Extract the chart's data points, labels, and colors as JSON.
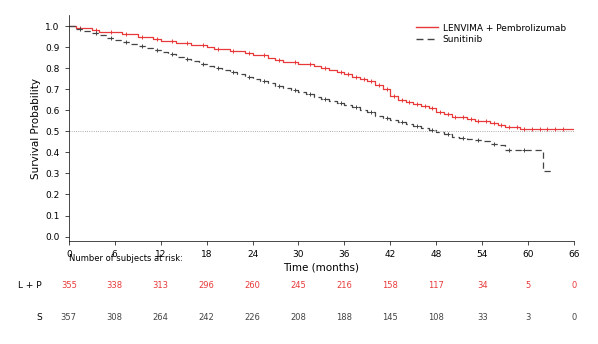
{
  "xlabel": "Time (months)",
  "ylabel": "Survival Probability",
  "xlim": [
    0,
    66
  ],
  "ylim": [
    -0.02,
    1.05
  ],
  "xticks": [
    0,
    6,
    12,
    18,
    24,
    30,
    36,
    42,
    48,
    54,
    60,
    66
  ],
  "yticks": [
    0.0,
    0.1,
    0.2,
    0.3,
    0.4,
    0.5,
    0.6,
    0.7,
    0.8,
    0.9,
    1.0
  ],
  "median_line_y": 0.5,
  "lp_color": "#e8393a",
  "sunitinib_color": "#444444",
  "lp_label": "LENVIMA + Pembrolizumab",
  "sunitinib_label": "Sunitinib",
  "risk_label": "Number of subjects at risk:",
  "lp_risk_label": "L + P",
  "sunitinib_risk_label": "S",
  "lp_risk": [
    355,
    338,
    313,
    296,
    260,
    245,
    216,
    158,
    117,
    34,
    5,
    0
  ],
  "sunitinib_risk": [
    357,
    308,
    264,
    242,
    226,
    208,
    188,
    145,
    108,
    33,
    3,
    0
  ],
  "risk_timepoints": [
    0,
    6,
    12,
    18,
    24,
    30,
    36,
    42,
    48,
    54,
    60,
    66
  ],
  "lp_times": [
    0,
    1,
    2,
    3,
    4,
    5,
    6,
    7,
    8,
    9,
    10,
    11,
    12,
    13,
    14,
    15,
    16,
    17,
    18,
    19,
    20,
    21,
    22,
    23,
    24,
    25,
    26,
    27,
    28,
    29,
    30,
    31,
    32,
    33,
    34,
    35,
    36,
    37,
    38,
    39,
    40,
    41,
    42,
    43,
    44,
    45,
    46,
    47,
    48,
    49,
    50,
    51,
    52,
    53,
    54,
    55,
    56,
    57,
    58,
    59,
    60,
    61,
    62,
    63,
    64,
    65,
    66
  ],
  "lp_surv": [
    1.0,
    0.99,
    0.99,
    0.98,
    0.97,
    0.97,
    0.97,
    0.96,
    0.96,
    0.95,
    0.95,
    0.94,
    0.93,
    0.93,
    0.92,
    0.92,
    0.91,
    0.91,
    0.9,
    0.89,
    0.89,
    0.88,
    0.88,
    0.87,
    0.86,
    0.86,
    0.85,
    0.84,
    0.83,
    0.83,
    0.82,
    0.82,
    0.81,
    0.8,
    0.79,
    0.78,
    0.77,
    0.76,
    0.75,
    0.74,
    0.72,
    0.7,
    0.67,
    0.65,
    0.64,
    0.63,
    0.62,
    0.61,
    0.59,
    0.58,
    0.57,
    0.57,
    0.56,
    0.55,
    0.55,
    0.54,
    0.53,
    0.52,
    0.52,
    0.51,
    0.51,
    0.51,
    0.51,
    0.51,
    0.51,
    0.51,
    0.51
  ],
  "sunitinib_times": [
    0,
    1,
    2,
    3,
    4,
    5,
    6,
    7,
    8,
    9,
    10,
    11,
    12,
    13,
    14,
    15,
    16,
    17,
    18,
    19,
    20,
    21,
    22,
    23,
    24,
    25,
    26,
    27,
    28,
    29,
    30,
    31,
    32,
    33,
    34,
    35,
    36,
    37,
    38,
    39,
    40,
    41,
    42,
    43,
    44,
    45,
    46,
    47,
    48,
    49,
    50,
    51,
    52,
    53,
    54,
    55,
    56,
    57,
    58,
    59,
    60,
    61,
    62,
    63
  ],
  "sunitinib_surv": [
    1.0,
    0.985,
    0.975,
    0.965,
    0.955,
    0.945,
    0.935,
    0.925,
    0.915,
    0.905,
    0.895,
    0.885,
    0.875,
    0.865,
    0.855,
    0.845,
    0.835,
    0.82,
    0.81,
    0.8,
    0.79,
    0.78,
    0.77,
    0.76,
    0.75,
    0.74,
    0.73,
    0.715,
    0.705,
    0.695,
    0.685,
    0.675,
    0.665,
    0.655,
    0.645,
    0.635,
    0.625,
    0.615,
    0.6,
    0.59,
    0.575,
    0.565,
    0.555,
    0.545,
    0.535,
    0.525,
    0.515,
    0.505,
    0.495,
    0.485,
    0.475,
    0.47,
    0.465,
    0.46,
    0.455,
    0.44,
    0.435,
    0.41,
    0.41,
    0.41,
    0.41,
    0.41,
    0.31,
    0.31
  ],
  "lp_censor_x": [
    1.5,
    3.5,
    5.5,
    7.5,
    9.5,
    11.5,
    13.5,
    15.5,
    17.5,
    19.5,
    21.5,
    23.5,
    25.5,
    27.5,
    29.5,
    31.5,
    33.5,
    35.5,
    36.5,
    37.5,
    38.5,
    39.5,
    40.5,
    41.5,
    42.5,
    43.5,
    44.5,
    45.5,
    46.5,
    47.5,
    48.5,
    49.5,
    50.5,
    51.5,
    52.5,
    53.5,
    54.5,
    55.5,
    56.5,
    57.5,
    58.5,
    59.5,
    60.5,
    61.5,
    62.5,
    63.5,
    64.5
  ],
  "sunitinib_censor_x": [
    1.5,
    3.5,
    5.5,
    7.5,
    9.5,
    11.5,
    13.5,
    15.5,
    17.5,
    19.5,
    21.5,
    23.5,
    25.5,
    27.5,
    29.5,
    31.5,
    33.5,
    35.5,
    37.5,
    39.5,
    41.5,
    43.5,
    45.5,
    47.5,
    49.5,
    51.5,
    53.5,
    55.5,
    57.5,
    59.5
  ]
}
